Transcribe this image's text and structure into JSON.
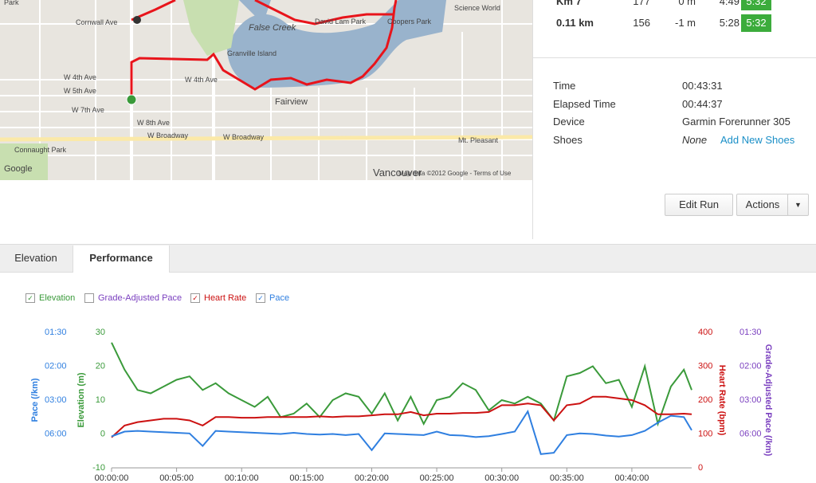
{
  "map": {
    "labels": [
      "Cornwall Ave",
      "Park",
      "False Creek",
      "David Lam Park",
      "Coopers Park",
      "Science World",
      "Granville Island",
      "W 4th Ave",
      "W 5th Ave",
      "W 7th Ave",
      "W 4th Ave",
      "Fairview",
      "W 8th Ave",
      "W Broadway",
      "W Broadway",
      "Mt. Pleasant",
      "Connaught Park",
      "Vancouver",
      "Map data ©2012 Google - Terms of Use",
      "Google"
    ]
  },
  "splits": {
    "rows": [
      [
        "Km 7",
        "177",
        "0 m",
        "4:49",
        "5:32"
      ],
      [
        "0.11 km",
        "156",
        "-1 m",
        "5:28",
        "5:32"
      ]
    ]
  },
  "details": {
    "rows": [
      [
        "Time",
        "00:43:31"
      ],
      [
        "Elapsed Time",
        "00:44:37"
      ],
      [
        "Device",
        "Garmin Forerunner 305"
      ]
    ],
    "shoes_label": "Shoes",
    "shoes_value": "None",
    "shoes_link": "Add New Shoes"
  },
  "buttons": {
    "edit": "Edit Run",
    "actions": "Actions"
  },
  "tabs": [
    "Elevation",
    "Performance"
  ],
  "chart_data": {
    "type": "line",
    "legend": [
      {
        "label": "Elevation",
        "checked": true,
        "color": "#3a9a3a"
      },
      {
        "label": "Grade-Adjusted Pace",
        "checked": false,
        "color": "#7a3fbf"
      },
      {
        "label": "Heart Rate",
        "checked": true,
        "color": "#cc1111"
      },
      {
        "label": "Pace",
        "checked": true,
        "color": "#2f7fe0"
      }
    ],
    "x": [
      0,
      1,
      2,
      3,
      4,
      5,
      6,
      7,
      8,
      9,
      10,
      11,
      12,
      13,
      14,
      15,
      16,
      17,
      18,
      19,
      20,
      21,
      22,
      23,
      24,
      25,
      26,
      27,
      28,
      29,
      30,
      31,
      32,
      33,
      34,
      35,
      36,
      37,
      38,
      39,
      40,
      41,
      42,
      43,
      44,
      44.6
    ],
    "xlim": [
      0,
      44.6
    ],
    "xticks": [
      {
        "value": 0,
        "label": "00:00:00"
      },
      {
        "value": 5,
        "label": "00:05:00"
      },
      {
        "value": 10,
        "label": "00:10:00"
      },
      {
        "value": 15,
        "label": "00:15:00"
      },
      {
        "value": 20,
        "label": "00:20:00"
      },
      {
        "value": 25,
        "label": "00:25:00"
      },
      {
        "value": 30,
        "label": "00:30:00"
      },
      {
        "value": 35,
        "label": "00:35:00"
      },
      {
        "value": 40,
        "label": "00:40:00"
      }
    ],
    "ylabel": "Elevation (m)",
    "ylim": [
      -10,
      30
    ],
    "yticks": [
      30,
      20,
      10,
      0,
      -10
    ],
    "y2label": "Heart Rate (bpm)",
    "y2lim": [
      0,
      400
    ],
    "y2ticks": [
      400,
      300,
      200,
      100,
      0
    ],
    "pace_axis": {
      "label": "Pace (/km)",
      "scale": "reciprocal",
      "top": 1.5,
      "color": "#2f7fe0",
      "ticks": [
        {
          "value": 1.5,
          "label": "01:30"
        },
        {
          "value": 2,
          "label": "02:00"
        },
        {
          "value": 3,
          "label": "03:00"
        },
        {
          "value": 6,
          "label": "06:00"
        }
      ]
    },
    "gap_axis": {
      "label": "Grade-Adjusted Pace (/km)",
      "color": "#7a3fbf",
      "ticks": [
        {
          "value": 1.5,
          "label": "01:30"
        },
        {
          "value": 2,
          "label": "02:00"
        },
        {
          "value": 3,
          "label": "03:00"
        },
        {
          "value": 6,
          "label": "06:00"
        }
      ]
    },
    "series": [
      {
        "name": "Elevation",
        "color": "#3a9a3a",
        "axis": "y",
        "values": [
          27,
          19,
          13,
          12,
          14,
          16,
          17,
          13,
          15,
          12,
          10,
          8,
          11,
          5,
          6,
          9,
          5,
          10,
          12,
          11,
          6,
          12,
          4,
          11,
          3,
          10,
          11,
          15,
          13,
          7,
          10,
          9,
          11,
          9,
          4,
          17,
          18,
          20,
          15,
          16,
          8,
          20,
          3,
          14,
          19,
          13
        ]
      },
      {
        "name": "Heart Rate",
        "color": "#cc1111",
        "axis": "y2",
        "values": [
          90,
          125,
          135,
          140,
          145,
          145,
          140,
          125,
          150,
          150,
          148,
          148,
          150,
          150,
          150,
          150,
          152,
          150,
          152,
          152,
          155,
          158,
          158,
          165,
          155,
          160,
          160,
          162,
          162,
          165,
          185,
          185,
          190,
          185,
          140,
          185,
          190,
          210,
          210,
          205,
          200,
          185,
          158,
          158,
          160,
          158
        ]
      },
      {
        "name": "Pace",
        "color": "#2f7fe0",
        "axis": "pace",
        "values": [
          6.46,
          5.6,
          5.5,
          5.6,
          5.7,
          5.8,
          5.9,
          9.3,
          5.5,
          5.6,
          5.7,
          5.8,
          5.9,
          6.0,
          5.8,
          6.0,
          6.1,
          6.0,
          6.2,
          6.0,
          11.5,
          5.9,
          6.0,
          6.1,
          6.2,
          5.6,
          6.2,
          6.3,
          6.6,
          6.4,
          6.0,
          5.6,
          3.6,
          14.8,
          13.5,
          6.2,
          5.9,
          6.0,
          6.3,
          6.5,
          6.2,
          5.5,
          4.5,
          3.9,
          4.0,
          5.4
        ]
      }
    ]
  }
}
